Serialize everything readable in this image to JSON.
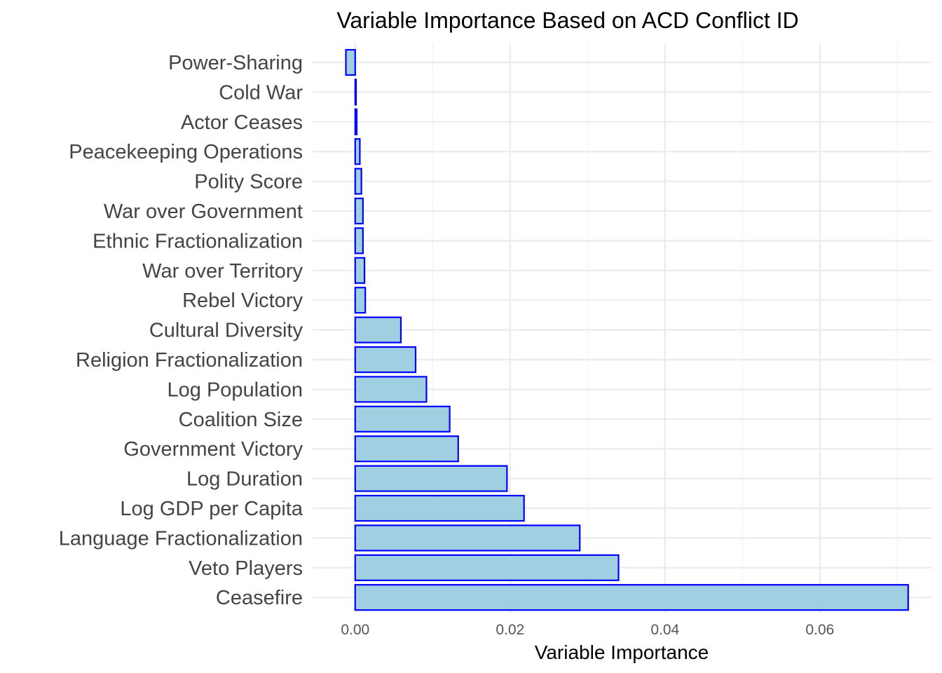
{
  "chart_data": {
    "type": "bar",
    "orientation": "horizontal",
    "title": "Variable Importance Based on ACD Conflict ID",
    "xlabel": "Variable Importance",
    "ylabel": "",
    "categories": [
      "Power-Sharing",
      "Cold War",
      "Actor Ceases",
      "Peacekeeping Operations",
      "Polity Score",
      "War over Government",
      "Ethnic Fractionalization",
      "War over Territory",
      "Rebel Victory",
      "Cultural Diversity",
      "Religion Fractionalization",
      "Log Population",
      "Coalition Size",
      "Government Victory",
      "Log Duration",
      "Log GDP per Capita",
      "Language Fractionalization",
      "Veto Players",
      "Ceasefire"
    ],
    "values": [
      -0.0012,
      0.0001,
      0.0002,
      0.0006,
      0.0008,
      0.001,
      0.001,
      0.0012,
      0.0013,
      0.0059,
      0.0078,
      0.0092,
      0.0122,
      0.0133,
      0.0196,
      0.0218,
      0.029,
      0.034,
      0.0714
    ],
    "xlim": [
      -0.0055,
      0.0745
    ],
    "xticks": [
      0,
      0.02,
      0.04,
      0.06
    ],
    "xtick_labels": [
      "0.00",
      "0.02",
      "0.04",
      "0.06"
    ],
    "grid": true,
    "legend": "none",
    "colors": {
      "bar_fill": "#9fcfe0",
      "bar_stroke": "#0000ff",
      "grid_major": "#ebebeb",
      "grid_minor": "#f3f3f3",
      "background": "#ffffff"
    }
  }
}
